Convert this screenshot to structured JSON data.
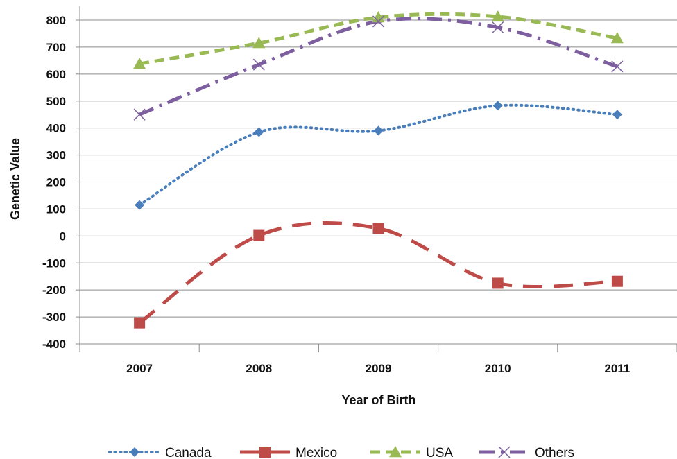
{
  "chart_data": {
    "type": "line",
    "title": "",
    "xlabel": "Year of Birth",
    "ylabel": "Genetic Value",
    "categories": [
      "2007",
      "2008",
      "2009",
      "2010",
      "2011"
    ],
    "ylim": [
      -400,
      800
    ],
    "yticks": [
      800,
      700,
      600,
      500,
      400,
      300,
      200,
      100,
      0,
      -100,
      -200,
      -300,
      -400
    ],
    "grid": true,
    "smooth": true,
    "legend_position": "bottom",
    "series": [
      {
        "name": "Canada",
        "values": [
          115,
          385,
          390,
          483,
          450
        ],
        "color": "#4a7ebb",
        "dash": "dotted",
        "marker": "diamond"
      },
      {
        "name": "Mexico",
        "values": [
          -322,
          2,
          28,
          -175,
          -168
        ],
        "color": "#be4b48",
        "dash": "long-dash",
        "marker": "square"
      },
      {
        "name": "USA",
        "values": [
          638,
          715,
          810,
          813,
          733
        ],
        "color": "#98b954",
        "dash": "dash",
        "marker": "triangle"
      },
      {
        "name": "Others",
        "values": [
          450,
          635,
          795,
          773,
          628
        ],
        "color": "#7d5fa0",
        "dash": "dash-dot",
        "marker": "x"
      }
    ]
  }
}
